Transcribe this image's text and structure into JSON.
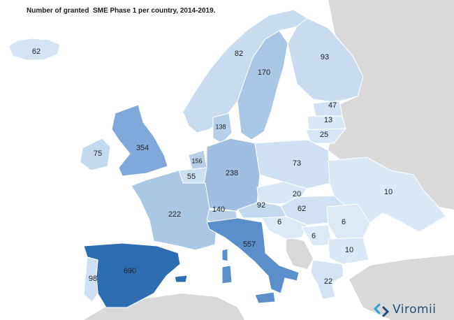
{
  "title": "Number of granted  SME Phase 1 per country, 2014-2019.",
  "colors": {
    "sea": "#ffffff",
    "nodata": "#d9d9d9",
    "border": "#ffffff",
    "scale_low": "#dbe8f5",
    "scale_high": "#2f6db3",
    "logo_accent": "#29a3d9",
    "logo_text": "#1f4e79"
  },
  "brand": {
    "name": "Viromii",
    "logo_icon": "viromii-logo-icon"
  },
  "countries": [
    {
      "id": "iceland",
      "value": "62"
    },
    {
      "id": "norway",
      "value": "82"
    },
    {
      "id": "sweden",
      "value": "170"
    },
    {
      "id": "finland",
      "value": "93"
    },
    {
      "id": "estonia",
      "value": "47"
    },
    {
      "id": "latvia",
      "value": "13"
    },
    {
      "id": "lithuania",
      "value": "25"
    },
    {
      "id": "denmark",
      "value": "138"
    },
    {
      "id": "ireland",
      "value": "75"
    },
    {
      "id": "uk",
      "value": "354"
    },
    {
      "id": "netherlands",
      "value": "156"
    },
    {
      "id": "belgium",
      "value": "55"
    },
    {
      "id": "germany",
      "value": "238"
    },
    {
      "id": "poland",
      "value": "73"
    },
    {
      "id": "ukraine",
      "value": "10"
    },
    {
      "id": "czechia",
      "value": "20"
    },
    {
      "id": "slovakia_hungary",
      "value": "62"
    },
    {
      "id": "austria",
      "value": "92"
    },
    {
      "id": "switzerland",
      "value": "140"
    },
    {
      "id": "france",
      "value": "222"
    },
    {
      "id": "slovenia_croatia",
      "value": "6"
    },
    {
      "id": "romania",
      "value": "6"
    },
    {
      "id": "serbia",
      "value": "6"
    },
    {
      "id": "bulgaria",
      "value": "10"
    },
    {
      "id": "italy",
      "value": "557"
    },
    {
      "id": "spain",
      "value": "690"
    },
    {
      "id": "portugal",
      "value": "98"
    },
    {
      "id": "greece",
      "value": "22"
    }
  ]
}
